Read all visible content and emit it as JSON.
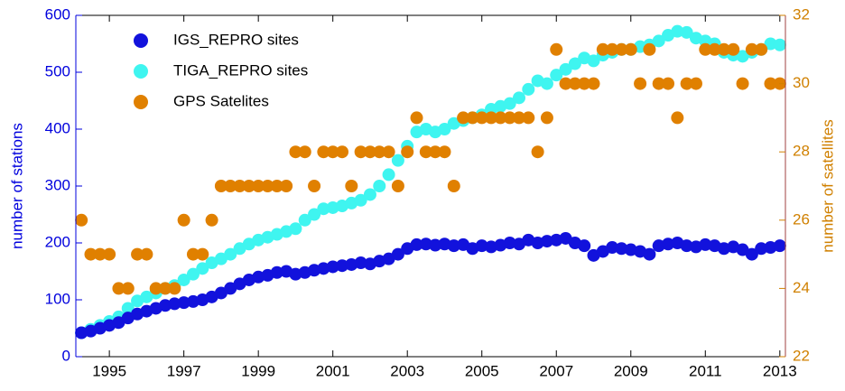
{
  "chart_data": {
    "type": "scatter",
    "xlim": [
      1994.1,
      2013.15
    ],
    "xticks": [
      1995,
      1997,
      1999,
      2001,
      2003,
      2005,
      2007,
      2009,
      2011,
      2013
    ],
    "ylim": [
      0,
      600
    ],
    "yticks": [
      0,
      100,
      200,
      300,
      400,
      500,
      600
    ],
    "y2lim": [
      22,
      32
    ],
    "y2ticks": [
      22,
      24,
      26,
      28,
      30,
      32
    ],
    "ylabel": "number of stations",
    "y2label": "number of satellites",
    "legend": "upper left",
    "x": [
      1994.25,
      1994.5,
      1994.75,
      1995,
      1995.25,
      1995.5,
      1995.75,
      1996,
      1996.25,
      1996.5,
      1996.75,
      1997,
      1997.25,
      1997.5,
      1997.75,
      1998,
      1998.25,
      1998.5,
      1998.75,
      1999,
      1999.25,
      1999.5,
      1999.75,
      2000,
      2000.25,
      2000.5,
      2000.75,
      2001,
      2001.25,
      2001.5,
      2001.75,
      2002,
      2002.25,
      2002.5,
      2002.75,
      2003,
      2003.25,
      2003.5,
      2003.75,
      2004,
      2004.25,
      2004.5,
      2004.75,
      2005,
      2005.25,
      2005.5,
      2005.75,
      2006,
      2006.25,
      2006.5,
      2006.75,
      2007,
      2007.25,
      2007.5,
      2007.75,
      2008,
      2008.25,
      2008.5,
      2008.75,
      2009,
      2009.25,
      2009.5,
      2009.75,
      2010,
      2010.25,
      2010.5,
      2010.75,
      2011,
      2011.25,
      2011.5,
      2011.75,
      2012,
      2012.25,
      2012.5,
      2012.75,
      2013
    ],
    "series": [
      {
        "name": "TIGA_REPRO sites",
        "color": "#3ff5f0",
        "values": [
          42,
          48,
          55,
          62,
          70,
          85,
          98,
          105,
          112,
          120,
          125,
          135,
          145,
          155,
          165,
          172,
          180,
          190,
          198,
          205,
          210,
          215,
          220,
          225,
          240,
          250,
          260,
          262,
          265,
          270,
          275,
          285,
          300,
          320,
          345,
          370,
          395,
          400,
          395,
          400,
          410,
          415,
          420,
          425,
          435,
          440,
          445,
          455,
          470,
          485,
          480,
          495,
          505,
          515,
          525,
          520,
          530,
          535,
          540,
          540,
          545,
          548,
          555,
          565,
          572,
          570,
          560,
          555,
          550,
          535,
          530,
          528,
          535,
          540,
          550,
          548
        ]
      },
      {
        "name": "IGS_REPRO sites",
        "color": "#1212dc",
        "values": [
          42,
          45,
          50,
          55,
          60,
          68,
          75,
          80,
          85,
          90,
          93,
          95,
          97,
          100,
          105,
          112,
          120,
          128,
          135,
          140,
          143,
          148,
          150,
          145,
          148,
          152,
          155,
          158,
          160,
          162,
          165,
          163,
          168,
          172,
          180,
          190,
          197,
          198,
          196,
          198,
          195,
          197,
          190,
          195,
          193,
          196,
          200,
          198,
          205,
          200,
          203,
          205,
          208,
          200,
          195,
          178,
          185,
          192,
          190,
          188,
          185,
          180,
          195,
          198,
          200,
          195,
          193,
          197,
          195,
          190,
          193,
          188,
          180,
          190,
          192,
          195
        ]
      },
      {
        "name": "GPS Satelites",
        "color": "#e08000",
        "axis": "y2",
        "values": [
          26,
          25,
          25,
          25,
          24,
          24,
          25,
          25,
          24,
          24,
          24,
          26,
          25,
          25,
          26,
          27,
          27,
          27,
          27,
          27,
          27,
          27,
          27,
          28,
          28,
          27,
          28,
          28,
          28,
          27,
          28,
          28,
          28,
          28,
          27,
          28,
          29,
          28,
          28,
          28,
          27,
          29,
          29,
          29,
          29,
          29,
          29,
          29,
          29,
          28,
          29,
          31,
          30,
          30,
          30,
          30,
          31,
          31,
          31,
          31,
          30,
          31,
          30,
          30,
          29,
          30,
          30,
          31,
          31,
          31,
          31,
          30,
          31,
          31,
          30,
          30
        ]
      }
    ],
    "legend_order": [
      1,
      0,
      2
    ]
  }
}
